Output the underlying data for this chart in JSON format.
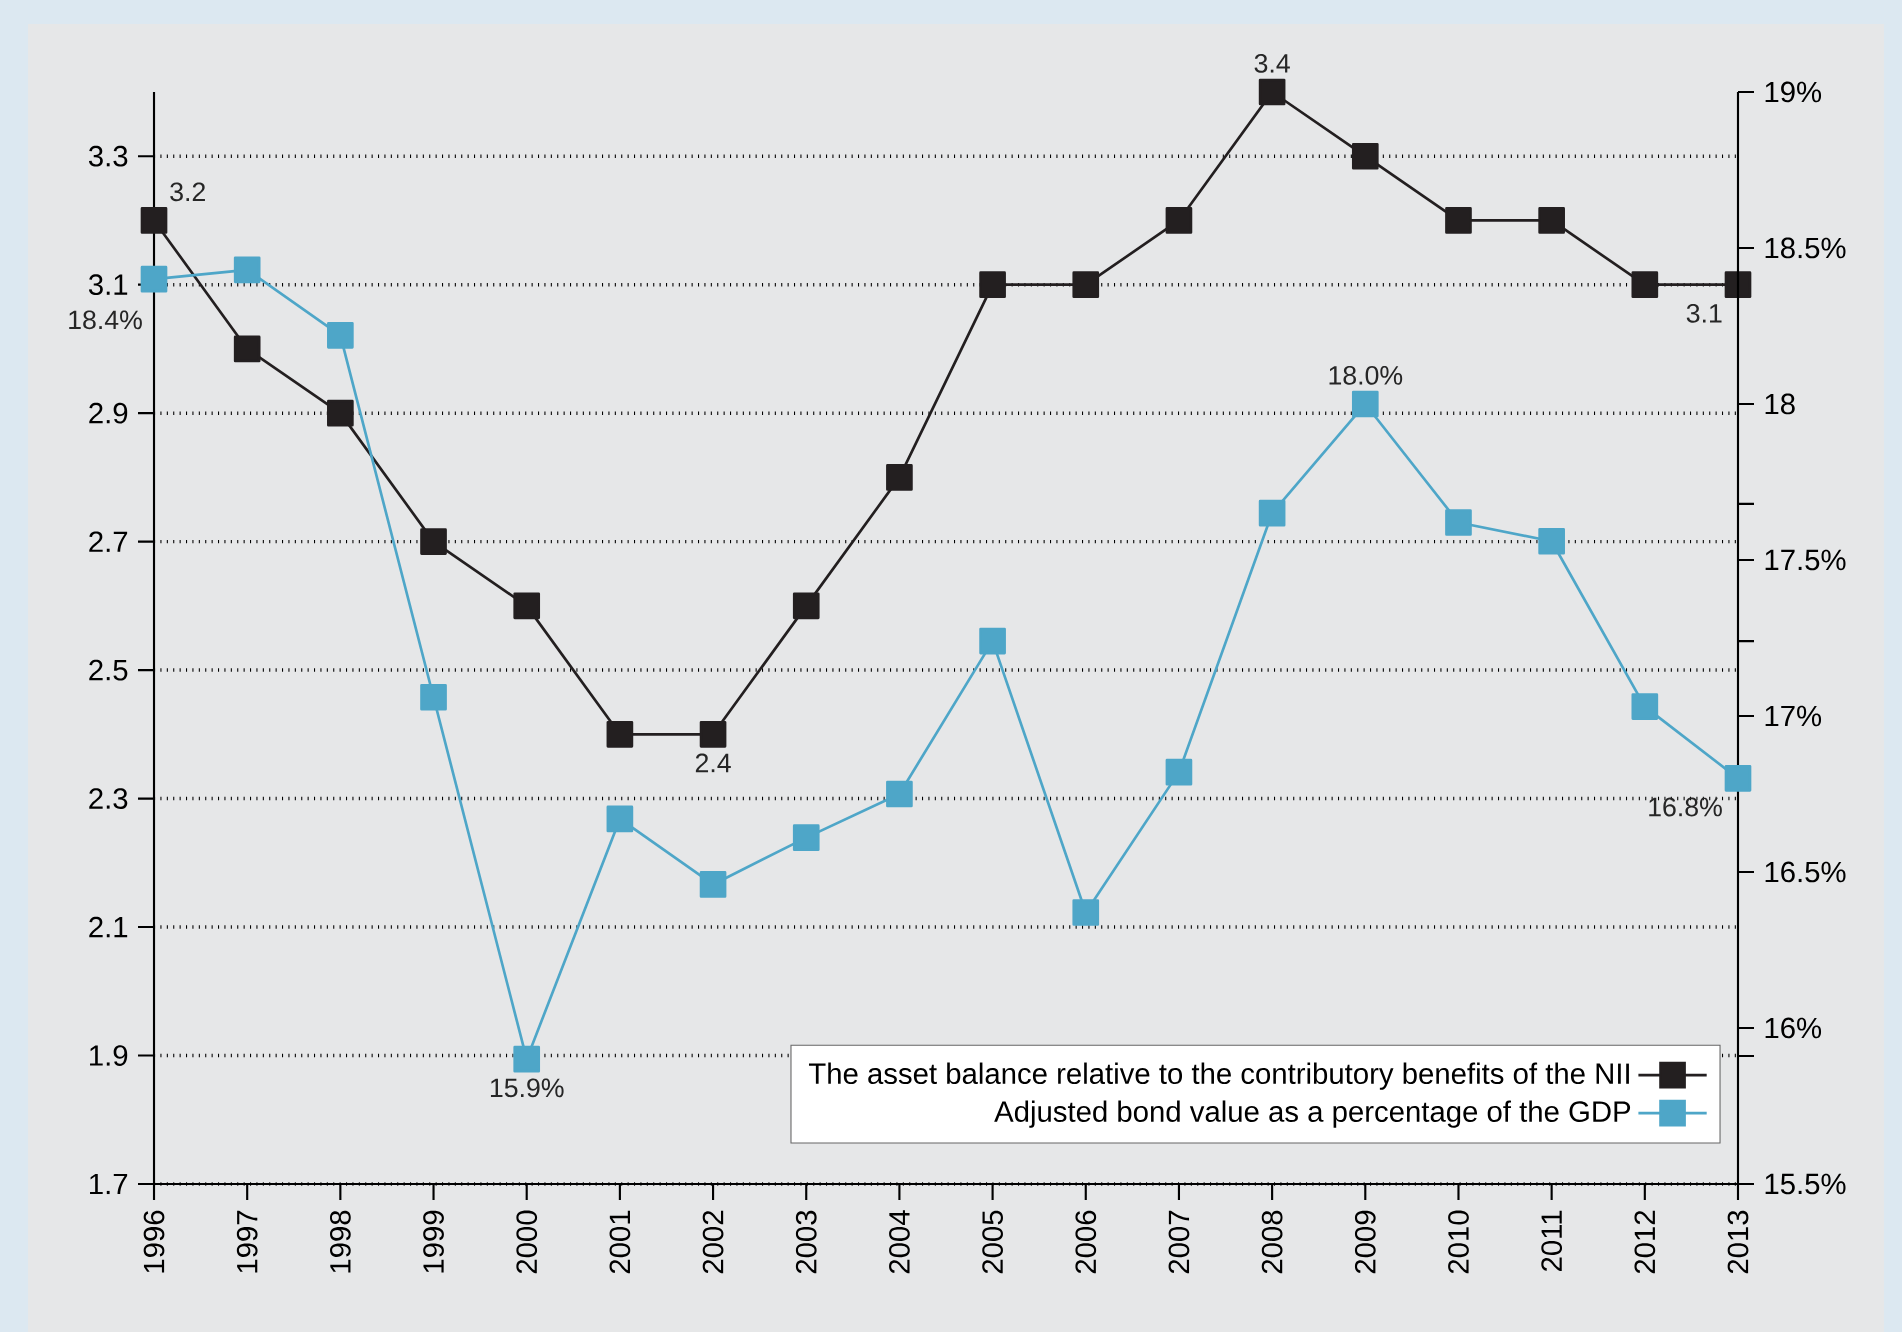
{
  "chart_data": {
    "type": "line",
    "categories": [
      "1996",
      "1997",
      "1998",
      "1999",
      "2000",
      "2001",
      "2002",
      "2003",
      "2004",
      "2005",
      "2006",
      "2007",
      "2008",
      "2009",
      "2010",
      "2011",
      "2012",
      "2013"
    ],
    "series": [
      {
        "name": "The asset balance relative to the contributory benefits of the NII",
        "color": "#231f20",
        "values": [
          3.2,
          3.0,
          2.9,
          2.7,
          2.6,
          2.4,
          2.4,
          2.6,
          2.8,
          3.1,
          3.1,
          3.2,
          3.4,
          3.3,
          3.2,
          3.2,
          3.1,
          3.1
        ],
        "value_labels": [
          "3.2",
          null,
          null,
          null,
          null,
          null,
          "2.4",
          null,
          null,
          null,
          null,
          null,
          "3.4",
          null,
          null,
          null,
          null,
          "3.1"
        ]
      },
      {
        "name": "Adjusted bond value as a percentage of the GDP",
        "color": "#4ea6c8",
        "axis": "y2",
        "values": [
          18.4,
          18.43,
          18.22,
          17.06,
          15.9,
          16.67,
          16.46,
          16.61,
          16.75,
          17.24,
          16.37,
          16.82,
          17.65,
          18.0,
          17.62,
          17.56,
          17.03,
          16.8
        ],
        "value_labels": [
          "18.4%",
          null,
          null,
          null,
          "15.9%",
          null,
          null,
          null,
          null,
          null,
          null,
          null,
          null,
          "18.0%",
          null,
          null,
          null,
          "16.8%"
        ]
      }
    ],
    "ylim": [
      1.7,
      3.4
    ],
    "yticks": [
      1.7,
      1.9,
      2.1,
      2.3,
      2.5,
      2.7,
      2.9,
      3.1,
      3.3
    ],
    "y2lim": [
      15.5,
      19
    ],
    "y2ticks": [
      {
        "value": 15.5,
        "label": "15.5%"
      },
      {
        "value": 15.91,
        "label": null
      },
      {
        "value": 16,
        "label": "16%"
      },
      {
        "value": 16.5,
        "label": "16.5%"
      },
      {
        "value": 17,
        "label": "17%"
      },
      {
        "value": 17.24,
        "label": null
      },
      {
        "value": 17.5,
        "label": "17.5%"
      },
      {
        "value": 17.68,
        "label": null
      },
      18,
      {
        "value": 18.5,
        "label": "18.5%"
      },
      {
        "value": 19,
        "label": "19%"
      }
    ],
    "grid": "y",
    "legend": "bottom right",
    "marker": "square",
    "line_style": "solid"
  }
}
